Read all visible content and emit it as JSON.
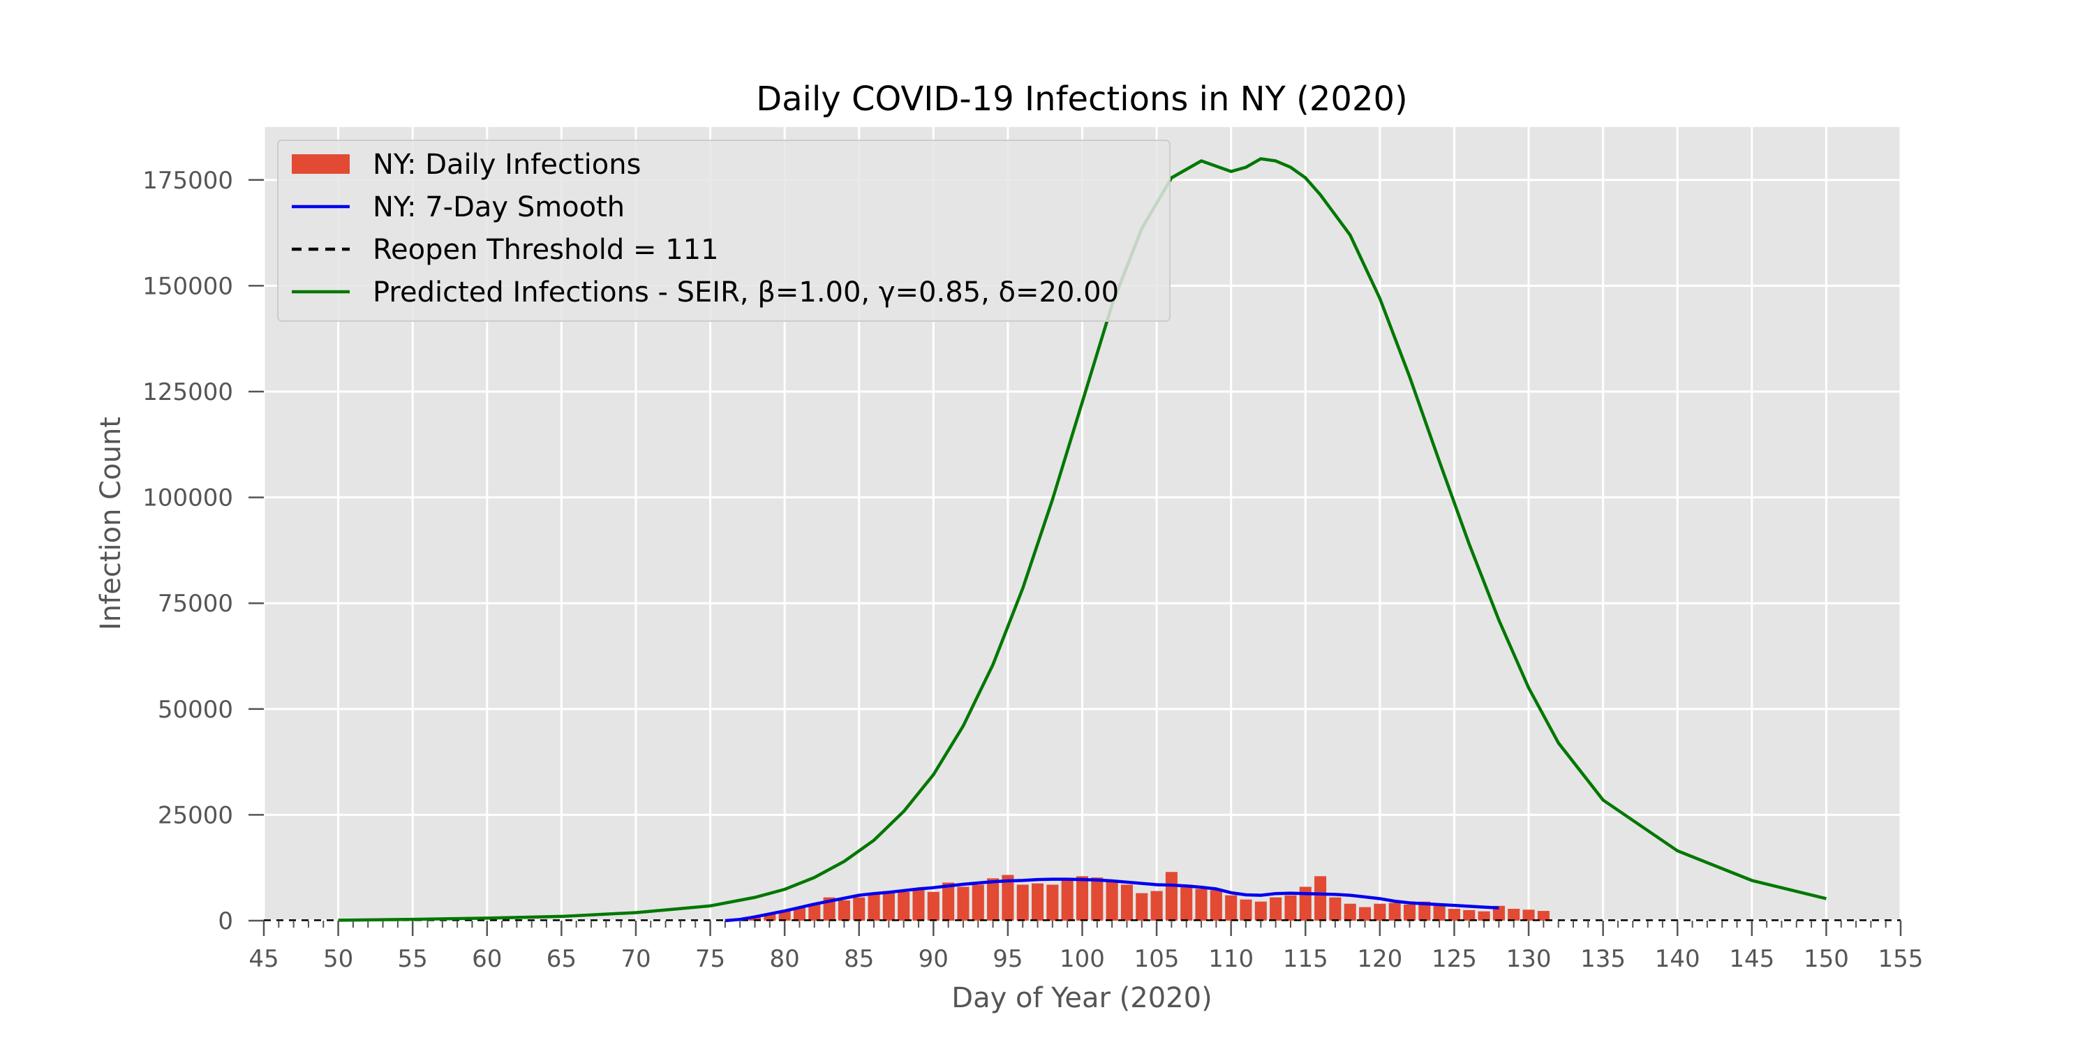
{
  "chart_data": {
    "type": "bar",
    "title": "Daily COVID-19 Infections in NY (2020)",
    "xlabel": "Day of Year (2020)",
    "ylabel": "Infection Count",
    "xlim": [
      45,
      155
    ],
    "ylim": [
      0,
      187500
    ],
    "xticks": [
      45,
      50,
      55,
      60,
      65,
      70,
      75,
      80,
      85,
      90,
      95,
      100,
      105,
      110,
      115,
      120,
      125,
      130,
      135,
      140,
      145,
      150,
      155
    ],
    "yticks": [
      0,
      25000,
      50000,
      75000,
      100000,
      125000,
      150000,
      175000
    ],
    "grid": true,
    "legend_position": "top-left",
    "colors": {
      "background": "#e5e5e5",
      "bars": "#e24a33",
      "smooth": "#0000ee",
      "threshold": "#000000",
      "predicted": "#007700"
    },
    "series": [
      {
        "name": "NY: Daily Infections",
        "kind": "bar",
        "x": [
          77,
          78,
          79,
          80,
          81,
          82,
          83,
          84,
          85,
          86,
          87,
          88,
          89,
          90,
          91,
          92,
          93,
          94,
          95,
          96,
          97,
          98,
          99,
          100,
          101,
          102,
          103,
          104,
          105,
          106,
          107,
          108,
          109,
          110,
          111,
          112,
          113,
          114,
          115,
          116,
          117,
          118,
          119,
          120,
          121,
          122,
          123,
          124,
          125,
          126,
          127,
          128,
          129,
          130,
          131
        ],
        "values": [
          400,
          800,
          1500,
          2300,
          3000,
          4000,
          5500,
          4800,
          5500,
          6500,
          7000,
          6800,
          7500,
          6800,
          9000,
          8000,
          8500,
          10000,
          10800,
          8500,
          8800,
          8500,
          10000,
          10500,
          10200,
          9500,
          8500,
          6500,
          7000,
          11500,
          8500,
          7500,
          7200,
          6000,
          5000,
          4500,
          5500,
          6000,
          8000,
          10500,
          5500,
          4000,
          3200,
          4000,
          4200,
          3800,
          4500,
          3500,
          2800,
          2500,
          2200,
          3500,
          2800,
          2600,
          2300
        ]
      },
      {
        "name": "NY: 7-Day Smooth",
        "kind": "line",
        "x": [
          76,
          77,
          78,
          79,
          80,
          81,
          82,
          83,
          84,
          85,
          86,
          87,
          88,
          89,
          90,
          91,
          92,
          93,
          94,
          95,
          96,
          97,
          98,
          99,
          100,
          101,
          102,
          103,
          104,
          105,
          106,
          107,
          108,
          109,
          110,
          111,
          112,
          113,
          114,
          115,
          116,
          117,
          118,
          119,
          120,
          121,
          122,
          123,
          124,
          125,
          126,
          127,
          128
        ],
        "values": [
          0,
          300,
          900,
          1600,
          2300,
          3100,
          3900,
          4600,
          5300,
          6000,
          6400,
          6700,
          7100,
          7500,
          7800,
          8200,
          8600,
          8900,
          9200,
          9400,
          9500,
          9700,
          9800,
          9800,
          9700,
          9600,
          9400,
          9100,
          8800,
          8500,
          8400,
          8200,
          7900,
          7500,
          6600,
          6100,
          6000,
          6400,
          6500,
          6400,
          6300,
          6200,
          6000,
          5600,
          5200,
          4600,
          4200,
          4000,
          3800,
          3600,
          3400,
          3200,
          3000
        ]
      },
      {
        "name": "Reopen Threshold = 111",
        "kind": "hline",
        "value": 111
      },
      {
        "name": "Predicted Infections - SEIR, β=1.00, γ=0.85, δ=20.00",
        "kind": "line",
        "x": [
          50,
          55,
          60,
          65,
          70,
          75,
          78,
          80,
          82,
          84,
          86,
          88,
          90,
          92,
          94,
          96,
          98,
          100,
          102,
          104,
          106,
          108,
          110,
          111,
          112,
          113,
          114,
          115,
          116,
          118,
          120,
          122,
          124,
          126,
          128,
          130,
          132,
          135,
          140,
          145,
          150
        ],
        "values": [
          100,
          300,
          600,
          1000,
          1900,
          3500,
          5500,
          7400,
          10200,
          14000,
          19000,
          25800,
          34500,
          46000,
          60500,
          78500,
          99500,
          122500,
          145500,
          163500,
          175500,
          179500,
          177000,
          178000,
          180000,
          179500,
          178000,
          175500,
          171500,
          162000,
          147000,
          128500,
          108500,
          89000,
          71000,
          55000,
          42000,
          28500,
          16500,
          9500,
          5200
        ]
      }
    ]
  }
}
